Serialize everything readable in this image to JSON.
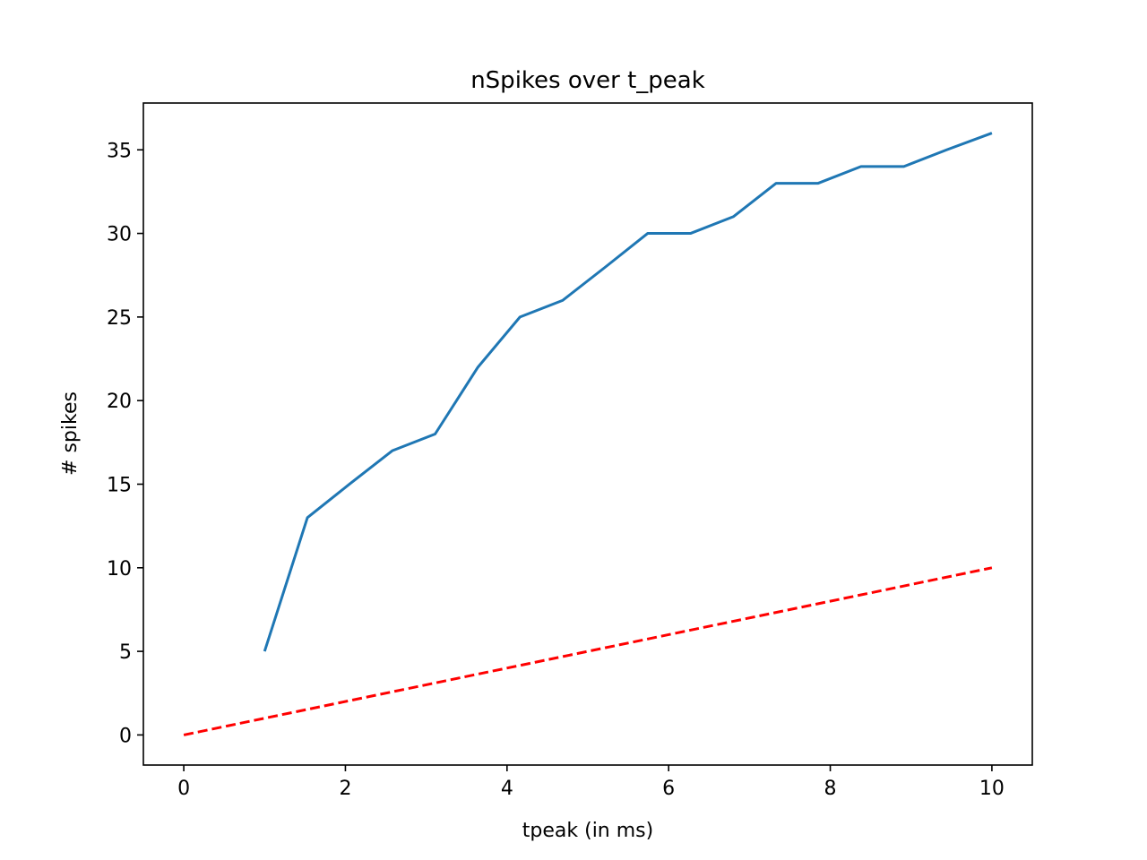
{
  "chart_data": {
    "type": "line",
    "title": "nSpikes over t_peak",
    "xlabel": "tpeak (in ms)",
    "ylabel": "# spikes",
    "xlim": [
      -0.5,
      10.5
    ],
    "ylim": [
      -1.8,
      37.8
    ],
    "xticks": [
      0,
      2,
      4,
      6,
      8,
      10
    ],
    "yticks": [
      0,
      5,
      10,
      15,
      20,
      25,
      30,
      35
    ],
    "grid": false,
    "legend": "none",
    "series": [
      {
        "color": "#1f77b4",
        "style": "solid",
        "x": [
          1.0,
          1.53,
          2.05,
          2.58,
          3.11,
          3.64,
          4.16,
          4.69,
          5.22,
          5.74,
          6.27,
          6.8,
          7.33,
          7.85,
          8.38,
          8.91,
          9.44,
          10.0
        ],
        "y": [
          5,
          13,
          15,
          17,
          18,
          22,
          25,
          26,
          28,
          30,
          30,
          31,
          33,
          33,
          34,
          34,
          35,
          36
        ]
      },
      {
        "color": "#ff0000",
        "style": "dashed",
        "x": [
          0,
          10
        ],
        "y": [
          0,
          10
        ]
      }
    ]
  }
}
